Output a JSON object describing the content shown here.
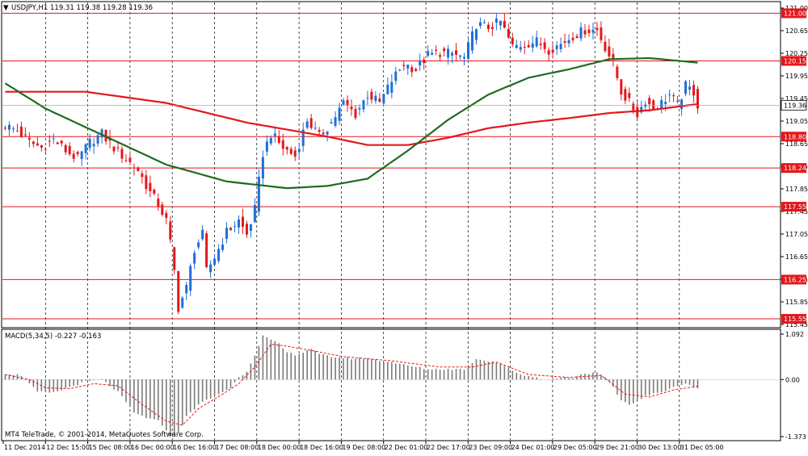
{
  "header": {
    "symbol_info": "USDJPY,H1  119.31 119.38 119.28 119.36",
    "macd_info": "MACD(5,34,5) -0.227 -0.163",
    "copyright": "MT4 TeleTrade, © 2001-2014, MetaQuotes Software Corp."
  },
  "colors": {
    "background": "#ffffff",
    "grid": "#000000",
    "bull_candle": "#1f6fd6",
    "bear_candle": "#e2181c",
    "ma_slow": "#e2181c",
    "ma_fast": "#1e6b1e",
    "level_line": "#e2181c",
    "macd_hist": "#7a7a7a",
    "macd_signal": "#e2181c",
    "current_price_tag": "#ffffff"
  },
  "chart_data": [
    {
      "type": "candlestick",
      "symbol": "USDJPY",
      "timeframe": "H1",
      "ylim": [
        115.45,
        121.15
      ],
      "price_ticks": [
        "121.00",
        "120.65",
        "120.25",
        "119.95",
        "119.45",
        "119.05",
        "118.65",
        "118.25",
        "117.85",
        "117.45",
        "117.05",
        "116.65",
        "116.25",
        "115.85",
        "115.45"
      ],
      "x_labels": [
        "11 Dec 2014",
        "12 Dec 15:00",
        "15 Dec 08:00",
        "16 Dec 00:00",
        "16 Dec 16:00",
        "17 Dec 08:00",
        "18 Dec 00:00",
        "18 Dec 16:00",
        "19 Dec 08:00",
        "22 Dec 01:00",
        "22 Dec 17:00",
        "23 Dec 09:00",
        "24 Dec 01:00",
        "29 Dec 05:00",
        "29 Dec 21:00",
        "30 Dec 13:00",
        "31 Dec 05:00"
      ],
      "levels": [
        {
          "label": "121.00",
          "value": 121.0
        },
        {
          "label": "120.15",
          "value": 120.15
        },
        {
          "label": "118.80",
          "value": 118.8
        },
        {
          "label": "118.24",
          "value": 118.24
        },
        {
          "label": "117.55",
          "value": 117.55
        },
        {
          "label": "116.25",
          "value": 116.25
        },
        {
          "label": "115.55",
          "value": 115.55
        }
      ],
      "current_price": {
        "label": "119.36",
        "value": 119.36
      },
      "close_path": [
        [
          0,
          119.0
        ],
        [
          3,
          118.9
        ],
        [
          6,
          118.7
        ],
        [
          9,
          118.6
        ],
        [
          12,
          118.75
        ],
        [
          15,
          118.55
        ],
        [
          18,
          118.4
        ],
        [
          21,
          118.7
        ],
        [
          24,
          118.85
        ],
        [
          27,
          118.6
        ],
        [
          30,
          118.4
        ],
        [
          33,
          118.2
        ],
        [
          36,
          117.8
        ],
        [
          38,
          117.6
        ],
        [
          40,
          117.3
        ],
        [
          41,
          116.9
        ],
        [
          42,
          116.4
        ],
        [
          43,
          115.75
        ],
        [
          45,
          116.1
        ],
        [
          47,
          116.8
        ],
        [
          49,
          117.05
        ],
        [
          50,
          116.4
        ],
        [
          52,
          116.65
        ],
        [
          55,
          117.1
        ],
        [
          58,
          117.3
        ],
        [
          60,
          117.05
        ],
        [
          62,
          117.5
        ],
        [
          64,
          118.5
        ],
        [
          66,
          118.85
        ],
        [
          69,
          118.6
        ],
        [
          72,
          118.45
        ],
        [
          75,
          119.1
        ],
        [
          78,
          118.8
        ],
        [
          81,
          119.05
        ],
        [
          84,
          119.4
        ],
        [
          87,
          119.2
        ],
        [
          90,
          119.55
        ],
        [
          93,
          119.4
        ],
        [
          96,
          119.8
        ],
        [
          99,
          120.1
        ],
        [
          102,
          120.0
        ],
        [
          105,
          120.25
        ],
        [
          108,
          120.3
        ],
        [
          111,
          120.28
        ],
        [
          114,
          120.2
        ],
        [
          117,
          120.8
        ],
        [
          120,
          120.75
        ],
        [
          123,
          120.85
        ],
        [
          126,
          120.4
        ],
        [
          129,
          120.45
        ],
        [
          132,
          120.5
        ],
        [
          135,
          120.35
        ],
        [
          138,
          120.45
        ],
        [
          141,
          120.6
        ],
        [
          144,
          120.7
        ],
        [
          147,
          120.7
        ],
        [
          149,
          120.4
        ],
        [
          151,
          120.1
        ],
        [
          153,
          119.6
        ],
        [
          155,
          119.4
        ],
        [
          157,
          119.2
        ],
        [
          159,
          119.45
        ],
        [
          161,
          119.3
        ],
        [
          163,
          119.4
        ],
        [
          165,
          119.55
        ],
        [
          167,
          119.35
        ],
        [
          169,
          119.7
        ],
        [
          171,
          119.6
        ],
        [
          172,
          119.36
        ]
      ],
      "ma_slow": [
        [
          0,
          119.6
        ],
        [
          20,
          119.6
        ],
        [
          40,
          119.4
        ],
        [
          60,
          119.05
        ],
        [
          80,
          118.8
        ],
        [
          90,
          118.65
        ],
        [
          100,
          118.65
        ],
        [
          110,
          118.78
        ],
        [
          120,
          118.95
        ],
        [
          130,
          119.05
        ],
        [
          140,
          119.13
        ],
        [
          150,
          119.22
        ],
        [
          160,
          119.27
        ],
        [
          172,
          119.38
        ]
      ],
      "ma_fast": [
        [
          0,
          119.75
        ],
        [
          10,
          119.3
        ],
        [
          25,
          118.8
        ],
        [
          40,
          118.3
        ],
        [
          55,
          118.0
        ],
        [
          70,
          117.88
        ],
        [
          80,
          117.92
        ],
        [
          90,
          118.05
        ],
        [
          100,
          118.55
        ],
        [
          110,
          119.1
        ],
        [
          120,
          119.55
        ],
        [
          130,
          119.85
        ],
        [
          140,
          120.0
        ],
        [
          150,
          120.18
        ],
        [
          160,
          120.2
        ],
        [
          172,
          120.12
        ]
      ]
    },
    {
      "type": "bar",
      "name": "MACD(5,34,5)",
      "ylim": [
        -1.373,
        1.092
      ],
      "y_ticks": [
        "1.092",
        "0.00",
        "-1.373"
      ],
      "macd": [
        [
          0,
          0.15
        ],
        [
          4,
          0.1
        ],
        [
          8,
          -0.3
        ],
        [
          12,
          -0.32
        ],
        [
          16,
          -0.18
        ],
        [
          20,
          -0.05
        ],
        [
          24,
          0.0
        ],
        [
          28,
          -0.3
        ],
        [
          32,
          -0.8
        ],
        [
          36,
          -0.95
        ],
        [
          38,
          -1.0
        ],
        [
          40,
          -1.2
        ],
        [
          41,
          -1.37
        ],
        [
          43,
          -1.25
        ],
        [
          45,
          -0.9
        ],
        [
          48,
          -0.6
        ],
        [
          52,
          -0.4
        ],
        [
          56,
          -0.2
        ],
        [
          58,
          0.05
        ],
        [
          60,
          0.2
        ],
        [
          62,
          0.6
        ],
        [
          64,
          1.05
        ],
        [
          66,
          0.95
        ],
        [
          68,
          0.85
        ],
        [
          70,
          0.65
        ],
        [
          72,
          0.6
        ],
        [
          74,
          0.65
        ],
        [
          76,
          0.75
        ],
        [
          78,
          0.6
        ],
        [
          81,
          0.55
        ],
        [
          84,
          0.52
        ],
        [
          87,
          0.5
        ],
        [
          90,
          0.52
        ],
        [
          93,
          0.45
        ],
        [
          96,
          0.42
        ],
        [
          99,
          0.35
        ],
        [
          102,
          0.3
        ],
        [
          105,
          0.25
        ],
        [
          108,
          0.25
        ],
        [
          111,
          0.25
        ],
        [
          114,
          0.25
        ],
        [
          117,
          0.5
        ],
        [
          120,
          0.45
        ],
        [
          123,
          0.4
        ],
        [
          126,
          0.2
        ],
        [
          129,
          0.1
        ],
        [
          132,
          0.05
        ],
        [
          135,
          0.0
        ],
        [
          138,
          0.05
        ],
        [
          141,
          0.05
        ],
        [
          144,
          0.15
        ],
        [
          147,
          0.15
        ],
        [
          149,
          0.05
        ],
        [
          151,
          -0.2
        ],
        [
          153,
          -0.5
        ],
        [
          155,
          -0.6
        ],
        [
          157,
          -0.5
        ],
        [
          159,
          -0.4
        ],
        [
          161,
          -0.35
        ],
        [
          163,
          -0.3
        ],
        [
          165,
          -0.2
        ],
        [
          167,
          -0.15
        ],
        [
          169,
          -0.1
        ],
        [
          172,
          -0.23
        ]
      ],
      "signal": [
        [
          0,
          0.12
        ],
        [
          6,
          0.0
        ],
        [
          10,
          -0.2
        ],
        [
          16,
          -0.22
        ],
        [
          22,
          -0.1
        ],
        [
          28,
          -0.15
        ],
        [
          34,
          -0.6
        ],
        [
          40,
          -1.0
        ],
        [
          44,
          -1.1
        ],
        [
          48,
          -0.7
        ],
        [
          54,
          -0.35
        ],
        [
          58,
          -0.1
        ],
        [
          62,
          0.3
        ],
        [
          66,
          0.85
        ],
        [
          70,
          0.8
        ],
        [
          76,
          0.7
        ],
        [
          84,
          0.55
        ],
        [
          96,
          0.45
        ],
        [
          108,
          0.3
        ],
        [
          116,
          0.3
        ],
        [
          122,
          0.42
        ],
        [
          130,
          0.12
        ],
        [
          140,
          0.05
        ],
        [
          148,
          0.1
        ],
        [
          154,
          -0.35
        ],
        [
          160,
          -0.42
        ],
        [
          166,
          -0.25
        ],
        [
          172,
          -0.16
        ]
      ]
    }
  ]
}
